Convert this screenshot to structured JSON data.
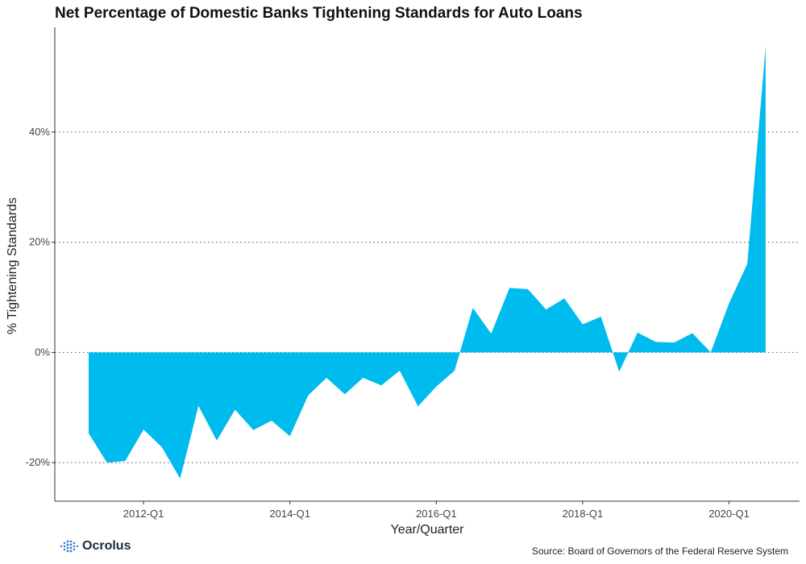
{
  "brand": {
    "name": "Ocrolus",
    "accent_color": "#3a7bd5"
  },
  "source_text": "Source: Board of Governors of the Federal Reserve System",
  "chart_data": {
    "type": "area",
    "title": "Net Percentage of Domestic Banks Tightening Standards for Auto Loans",
    "xlabel": "Year/Quarter",
    "ylabel": "% Tightening Standards",
    "x_tick_labels": [
      "2012-Q1",
      "2014-Q1",
      "2016-Q1",
      "2018-Q1",
      "2020-Q1"
    ],
    "x_tick_index": [
      3,
      11,
      19,
      27,
      35
    ],
    "y_ticks": [
      -20,
      0,
      20,
      40
    ],
    "y_tick_labels": [
      "-20%",
      "0%",
      "20%",
      "40%"
    ],
    "ylim": [
      -27,
      59
    ],
    "grid": "horizontal dotted",
    "color": "#00bbee",
    "categories": [
      "2011-Q2",
      "2011-Q3",
      "2011-Q4",
      "2012-Q1",
      "2012-Q2",
      "2012-Q3",
      "2012-Q4",
      "2013-Q1",
      "2013-Q2",
      "2013-Q3",
      "2013-Q4",
      "2014-Q1",
      "2014-Q2",
      "2014-Q3",
      "2014-Q4",
      "2015-Q1",
      "2015-Q2",
      "2015-Q3",
      "2015-Q4",
      "2016-Q1",
      "2016-Q2",
      "2016-Q3",
      "2016-Q4",
      "2017-Q1",
      "2017-Q2",
      "2017-Q3",
      "2017-Q4",
      "2018-Q1",
      "2018-Q2",
      "2018-Q3",
      "2018-Q4",
      "2019-Q1",
      "2019-Q2",
      "2019-Q3",
      "2019-Q4",
      "2020-Q1",
      "2020-Q2",
      "2020-Q3"
    ],
    "values": [
      -14.7,
      -20.0,
      -19.7,
      -14.0,
      -17.2,
      -22.9,
      -9.7,
      -16.0,
      -10.4,
      -14.1,
      -12.4,
      -15.2,
      -7.8,
      -4.6,
      -7.6,
      -4.6,
      -6.0,
      -3.3,
      -9.8,
      -6.2,
      -3.3,
      8.1,
      3.4,
      11.7,
      11.5,
      7.8,
      9.8,
      5.1,
      6.5,
      -3.5,
      3.6,
      1.9,
      1.8,
      3.5,
      0.0,
      8.9,
      16.1,
      55.5
    ]
  }
}
